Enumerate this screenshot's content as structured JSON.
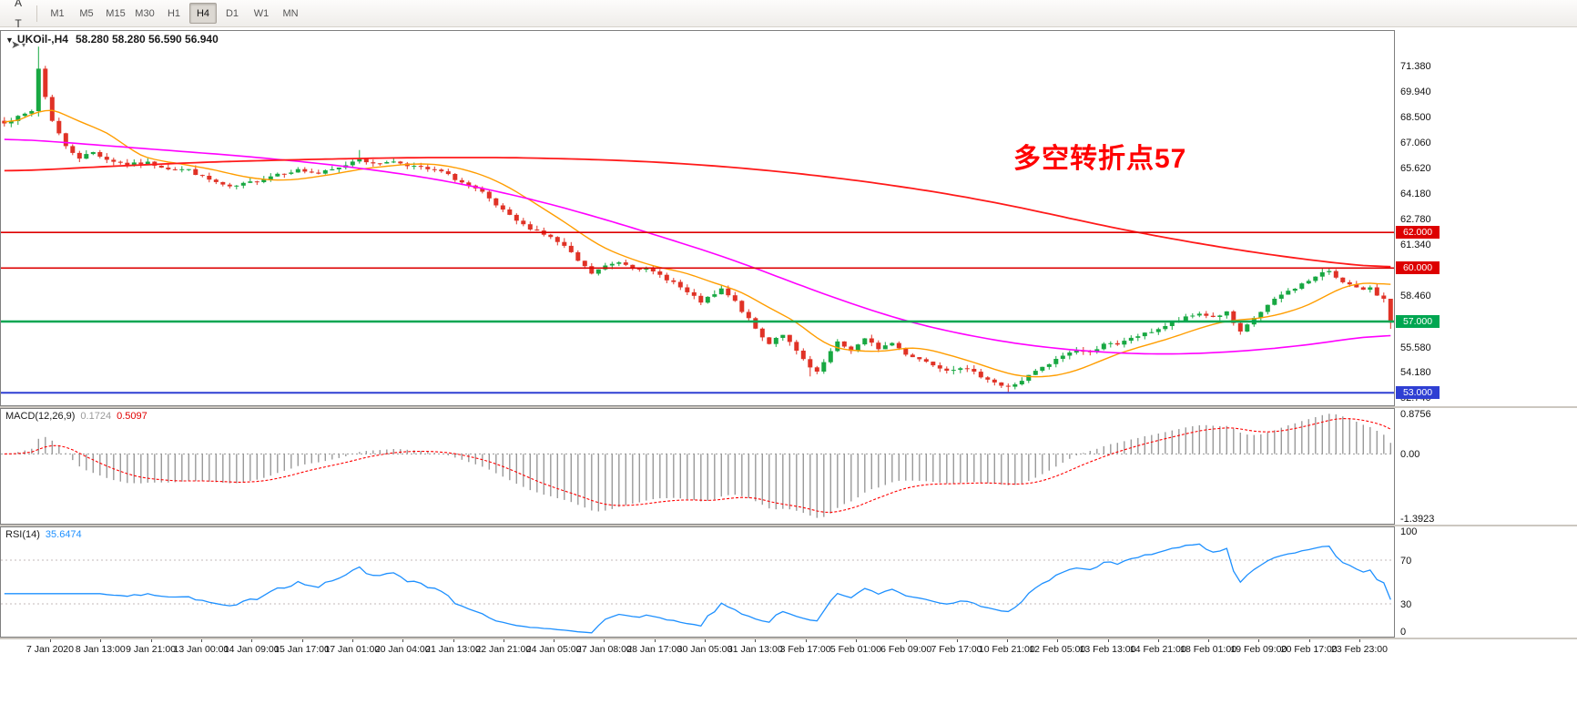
{
  "toolbar": {
    "tools": [
      {
        "name": "new-chart-button",
        "glyph": "▦",
        "color": "#1c7c1c",
        "dropdown": false
      },
      {
        "name": "font-tool-button",
        "glyph": "A",
        "color": "#333333",
        "dropdown": false
      },
      {
        "name": "text-tool-button",
        "glyph": "T",
        "color": "#333333",
        "dropdown": false
      },
      {
        "name": "cursor-tool-button",
        "glyph": "➤",
        "color": "#555555",
        "dropdown": true
      }
    ],
    "timeframes": [
      "M1",
      "M5",
      "M15",
      "M30",
      "H1",
      "H4",
      "D1",
      "W1",
      "MN"
    ],
    "active_timeframe": "H4"
  },
  "chart": {
    "symbol_label": "UKOil-,H4",
    "dropdown_glyph": "▼",
    "ohlc": "58.280 58.280 56.590 56.940",
    "annotation": "多空转折点57",
    "bars": 204,
    "bar_step": 7.5,
    "price_axis": {
      "min": 52.3,
      "max": 73.3,
      "labels": [
        {
          "text": "71.380",
          "v": 71.38
        },
        {
          "text": "69.940",
          "v": 69.94
        },
        {
          "text": "68.500",
          "v": 68.5
        },
        {
          "text": "67.060",
          "v": 67.06
        },
        {
          "text": "65.620",
          "v": 65.62
        },
        {
          "text": "64.180",
          "v": 64.18
        },
        {
          "text": "62.780",
          "v": 62.78
        },
        {
          "text": "61.340",
          "v": 61.34
        },
        {
          "text": "58.460",
          "v": 58.46
        },
        {
          "text": "55.580",
          "v": 55.58
        },
        {
          "text": "54.180",
          "v": 54.18
        },
        {
          "text": "52.740",
          "v": 52.74
        }
      ]
    },
    "hlines": [
      {
        "value": 62.0,
        "badge": "62.000",
        "color": "#dd0000",
        "width": 1.6
      },
      {
        "value": 60.0,
        "badge": "60.000",
        "color": "#dd0000",
        "width": 1.6
      },
      {
        "value": 57.0,
        "badge": "57.000",
        "color": "#00a651",
        "width": 2.6
      },
      {
        "value": 53.0,
        "badge": "53.000",
        "color": "#2f3fd3",
        "width": 2.0
      }
    ],
    "close_anchors": [
      [
        0,
        68.2
      ],
      [
        2,
        68.45
      ],
      [
        4,
        68.8
      ],
      [
        5,
        71.2
      ],
      [
        6,
        69.6
      ],
      [
        7,
        68.3
      ],
      [
        9,
        66.8
      ],
      [
        11,
        66.2
      ],
      [
        13,
        66.5
      ],
      [
        15,
        66.1
      ],
      [
        18,
        65.8
      ],
      [
        21,
        65.9
      ],
      [
        24,
        65.6
      ],
      [
        27,
        65.5
      ],
      [
        29,
        65.1
      ],
      [
        31,
        64.8
      ],
      [
        33,
        64.5
      ],
      [
        35,
        64.7
      ],
      [
        37,
        64.9
      ],
      [
        40,
        65.3
      ],
      [
        43,
        65.5
      ],
      [
        46,
        65.3
      ],
      [
        49,
        65.6
      ],
      [
        52,
        66.2
      ],
      [
        54,
        65.8
      ],
      [
        56,
        66.0
      ],
      [
        58,
        65.9
      ],
      [
        61,
        65.6
      ],
      [
        64,
        65.4
      ],
      [
        66,
        65.0
      ],
      [
        68,
        64.6
      ],
      [
        70,
        64.2
      ],
      [
        72,
        63.5
      ],
      [
        74,
        62.9
      ],
      [
        76,
        62.4
      ],
      [
        78,
        62.1
      ],
      [
        80,
        61.7
      ],
      [
        82,
        61.2
      ],
      [
        84,
        60.4
      ],
      [
        86,
        59.7
      ],
      [
        88,
        60.1
      ],
      [
        90,
        60.35
      ],
      [
        92,
        60.1
      ],
      [
        94,
        59.9
      ],
      [
        96,
        59.6
      ],
      [
        98,
        59.2
      ],
      [
        100,
        58.6
      ],
      [
        102,
        58.1
      ],
      [
        104,
        58.5
      ],
      [
        105,
        58.8
      ],
      [
        107,
        58.1
      ],
      [
        109,
        57.1
      ],
      [
        111,
        56.1
      ],
      [
        112,
        55.8
      ],
      [
        113,
        56.1
      ],
      [
        114,
        56.3
      ],
      [
        116,
        55.3
      ],
      [
        118,
        54.4
      ],
      [
        119,
        54.1
      ],
      [
        120,
        54.7
      ],
      [
        121,
        55.3
      ],
      [
        122,
        55.8
      ],
      [
        124,
        55.4
      ],
      [
        126,
        56.0
      ],
      [
        128,
        55.5
      ],
      [
        130,
        55.8
      ],
      [
        132,
        55.2
      ],
      [
        134,
        54.9
      ],
      [
        136,
        54.6
      ],
      [
        138,
        54.3
      ],
      [
        140,
        54.45
      ],
      [
        142,
        54.1
      ],
      [
        144,
        53.8
      ],
      [
        146,
        53.4
      ],
      [
        147,
        53.3
      ],
      [
        149,
        53.7
      ],
      [
        151,
        54.2
      ],
      [
        153,
        54.6
      ],
      [
        155,
        55.1
      ],
      [
        157,
        55.4
      ],
      [
        159,
        55.25
      ],
      [
        161,
        55.8
      ],
      [
        163,
        55.65
      ],
      [
        165,
        56.1
      ],
      [
        167,
        56.3
      ],
      [
        169,
        56.6
      ],
      [
        171,
        56.9
      ],
      [
        173,
        57.2
      ],
      [
        175,
        57.45
      ],
      [
        177,
        57.25
      ],
      [
        179,
        57.5
      ],
      [
        180,
        56.9
      ],
      [
        181,
        56.35
      ],
      [
        183,
        57.2
      ],
      [
        185,
        57.9
      ],
      [
        187,
        58.5
      ],
      [
        189,
        58.9
      ],
      [
        191,
        59.3
      ],
      [
        193,
        59.7
      ],
      [
        194,
        59.85
      ],
      [
        195,
        59.5
      ],
      [
        197,
        59.05
      ],
      [
        199,
        58.7
      ],
      [
        200,
        58.95
      ],
      [
        201,
        58.5
      ],
      [
        202,
        58.28
      ],
      [
        203,
        56.94
      ]
    ],
    "overrides": {
      "5": {
        "high": 72.42,
        "low": 68.5
      },
      "52": {
        "high": 66.62
      },
      "118": {
        "low": 53.92
      },
      "147": {
        "low": 53.05
      },
      "193": {
        "high": 59.96
      },
      "194": {
        "high": 59.97
      },
      "202": {
        "close": 58.28
      },
      "203": {
        "open": 58.28,
        "high": 58.28,
        "low": 56.59,
        "close": 56.94
      }
    },
    "ma_fast_period": 13,
    "ma_mid_anchors": [
      [
        0,
        67.3
      ],
      [
        12,
        66.95
      ],
      [
        24,
        66.6
      ],
      [
        36,
        66.25
      ],
      [
        48,
        65.8
      ],
      [
        60,
        65.2
      ],
      [
        70,
        64.5
      ],
      [
        80,
        63.6
      ],
      [
        90,
        62.5
      ],
      [
        100,
        61.3
      ],
      [
        108,
        60.3
      ],
      [
        116,
        59.1
      ],
      [
        124,
        58.0
      ],
      [
        132,
        57.0
      ],
      [
        140,
        56.3
      ],
      [
        148,
        55.75
      ],
      [
        156,
        55.4
      ],
      [
        164,
        55.2
      ],
      [
        172,
        55.15
      ],
      [
        180,
        55.3
      ],
      [
        188,
        55.55
      ],
      [
        196,
        55.95
      ],
      [
        203,
        56.4
      ]
    ],
    "ma_slow_anchors": [
      [
        0,
        65.4
      ],
      [
        15,
        65.7
      ],
      [
        30,
        65.95
      ],
      [
        45,
        66.1
      ],
      [
        60,
        66.2
      ],
      [
        75,
        66.2
      ],
      [
        90,
        66.05
      ],
      [
        100,
        65.85
      ],
      [
        110,
        65.55
      ],
      [
        120,
        65.15
      ],
      [
        130,
        64.65
      ],
      [
        140,
        64.05
      ],
      [
        150,
        63.3
      ],
      [
        160,
        62.45
      ],
      [
        170,
        61.7
      ],
      [
        180,
        61.05
      ],
      [
        190,
        60.5
      ],
      [
        203,
        59.95
      ]
    ],
    "colors": {
      "up": "#18a842",
      "down": "#e03226",
      "ma_fast": "#ff9d00",
      "ma_mid": "#ff00ff",
      "ma_slow": "#ff1a1a"
    }
  },
  "macd": {
    "label": "MACD(12,26,9)",
    "value_main": "0.1724",
    "value_signal": "0.5097",
    "fast": 12,
    "slow": 26,
    "signal": 9,
    "range_max": 0.98,
    "range_min": -1.52,
    "display_max": 0.8756,
    "display_min": -1.3923,
    "hist_color": "#9a9a9a",
    "signal_color": "#ff0000",
    "scale": [
      {
        "text": "0.8756",
        "v": 0.8756
      },
      {
        "text": "0.00",
        "v": 0
      },
      {
        "text": "-1.3923",
        "v": -1.3923
      }
    ]
  },
  "rsi": {
    "label": "RSI(14)",
    "value": "35.6474",
    "period": 14,
    "line_color": "#1e90ff",
    "level_color": "#c3b9b9",
    "dashed_levels": [
      70,
      30
    ],
    "scale": [
      {
        "text": "100",
        "v": 100
      },
      {
        "text": "70",
        "v": 70
      },
      {
        "text": "30",
        "v": 30
      },
      {
        "text": "0",
        "v": 0
      }
    ]
  },
  "time_axis": {
    "labels": [
      "7 Jan 2020",
      "8 Jan 13:00",
      "9 Jan 21:00",
      "13 Jan 00:00",
      "14 Jan 09:00",
      "15 Jan 17:00",
      "17 Jan 01:00",
      "20 Jan 04:00",
      "21 Jan 13:00",
      "22 Jan 21:00",
      "24 Jan 05:00",
      "27 Jan 08:00",
      "28 Jan 17:00",
      "30 Jan 05:00",
      "31 Jan 13:00",
      "3 Feb 17:00",
      "5 Feb 01:00",
      "6 Feb 09:00",
      "7 Feb 17:00",
      "10 Feb 21:00",
      "12 Feb 05:00",
      "13 Feb 13:00",
      "14 Feb 21:00",
      "18 Feb 01:00",
      "19 Feb 09:00",
      "20 Feb 17:00",
      "23 Feb 23:00"
    ]
  }
}
